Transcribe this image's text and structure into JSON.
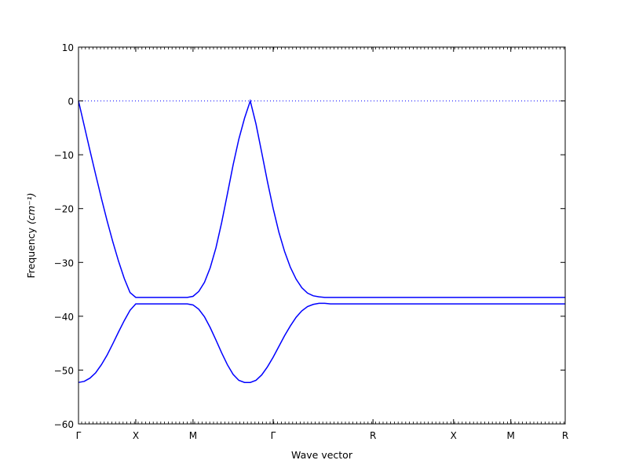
{
  "chart_data": {
    "type": "line",
    "xlabel": "Wave vector",
    "ylabel": "Frequency",
    "ylabel_unit": "(cm⁻¹)",
    "ylim": [
      -60,
      10
    ],
    "yticks": [
      10,
      0,
      -10,
      -20,
      -30,
      -40,
      -50,
      -60
    ],
    "ytick_labels": [
      "10",
      "0",
      "−10",
      "−20",
      "−30",
      "−40",
      "−50",
      "−60"
    ],
    "xlim": [
      0,
      8.5
    ],
    "xticks": [
      0,
      1,
      2,
      3.4,
      5.143,
      6.55,
      7.55,
      8.5
    ],
    "xtick_labels": [
      "Γ",
      "X",
      "M",
      "Γ",
      "R",
      "X",
      "M",
      "R"
    ],
    "zero_line": {
      "y": 0,
      "style": "dotted"
    },
    "grid": false,
    "colors": {
      "series": "#0000ff",
      "zero_line": "#0000ff",
      "axes": "#000000"
    },
    "series": [
      {
        "x": [
          0,
          0.1,
          0.2,
          0.3,
          0.4,
          0.5,
          0.6,
          0.7,
          0.8,
          0.9,
          1.0,
          1.2,
          1.4,
          1.6,
          1.75,
          1.9,
          2.0,
          2.1,
          2.2,
          2.3,
          2.4,
          2.5,
          2.6,
          2.7,
          2.8,
          2.9,
          3.0,
          3.1,
          3.2,
          3.3,
          3.4,
          3.5,
          3.6,
          3.7,
          3.8,
          3.9,
          4.0,
          4.1,
          4.2,
          4.3,
          4.4,
          4.5,
          4.6,
          4.7,
          4.8,
          4.9,
          5.0,
          5.143,
          5.5,
          6.0,
          6.55,
          7.0,
          7.55,
          8.0,
          8.5
        ],
        "values": [
          0,
          -4.6,
          -9.2,
          -13.7,
          -18.1,
          -22.3,
          -26.2,
          -29.8,
          -33.0,
          -35.6,
          -36.5,
          -36.5,
          -36.5,
          -36.5,
          -36.5,
          -36.5,
          -36.3,
          -35.4,
          -33.7,
          -31.0,
          -27.3,
          -22.6,
          -17.3,
          -11.9,
          -7.1,
          -3.2,
          0,
          -4.3,
          -9.6,
          -15.0,
          -20.0,
          -24.4,
          -28.0,
          -30.9,
          -33.1,
          -34.7,
          -35.7,
          -36.2,
          -36.4,
          -36.5,
          -36.5,
          -36.5,
          -36.5,
          -36.5,
          -36.5,
          -36.5,
          -36.5,
          -36.5,
          -36.5,
          -36.5,
          -36.5,
          -36.5,
          -36.5,
          -36.5,
          -36.5
        ]
      },
      {
        "x": [
          0,
          0.1,
          0.2,
          0.3,
          0.4,
          0.5,
          0.6,
          0.7,
          0.8,
          0.9,
          1.0,
          1.2,
          1.4,
          1.6,
          1.75,
          1.9,
          2.0,
          2.1,
          2.2,
          2.3,
          2.4,
          2.5,
          2.6,
          2.7,
          2.8,
          2.9,
          3.0,
          3.1,
          3.2,
          3.3,
          3.4,
          3.5,
          3.6,
          3.7,
          3.8,
          3.9,
          4.0,
          4.1,
          4.2,
          4.3,
          4.4,
          4.5,
          4.6,
          4.7,
          4.8,
          4.9,
          5.0,
          5.143,
          5.5,
          6.0,
          6.55,
          7.0,
          7.55,
          8.0,
          8.5
        ],
        "values": [
          -52.3,
          -52.1,
          -51.5,
          -50.5,
          -49.0,
          -47.2,
          -45.1,
          -42.9,
          -40.8,
          -38.9,
          -37.7,
          -37.7,
          -37.7,
          -37.7,
          -37.7,
          -37.7,
          -37.9,
          -38.7,
          -40.1,
          -42.1,
          -44.4,
          -46.8,
          -49.0,
          -50.8,
          -51.9,
          -52.3,
          -52.3,
          -51.9,
          -50.9,
          -49.4,
          -47.6,
          -45.6,
          -43.6,
          -41.8,
          -40.2,
          -39.0,
          -38.2,
          -37.8,
          -37.6,
          -37.6,
          -37.7,
          -37.7,
          -37.7,
          -37.7,
          -37.7,
          -37.7,
          -37.7,
          -37.7,
          -37.7,
          -37.7,
          -37.7,
          -37.7,
          -37.7,
          -37.7,
          -37.7
        ]
      }
    ]
  }
}
